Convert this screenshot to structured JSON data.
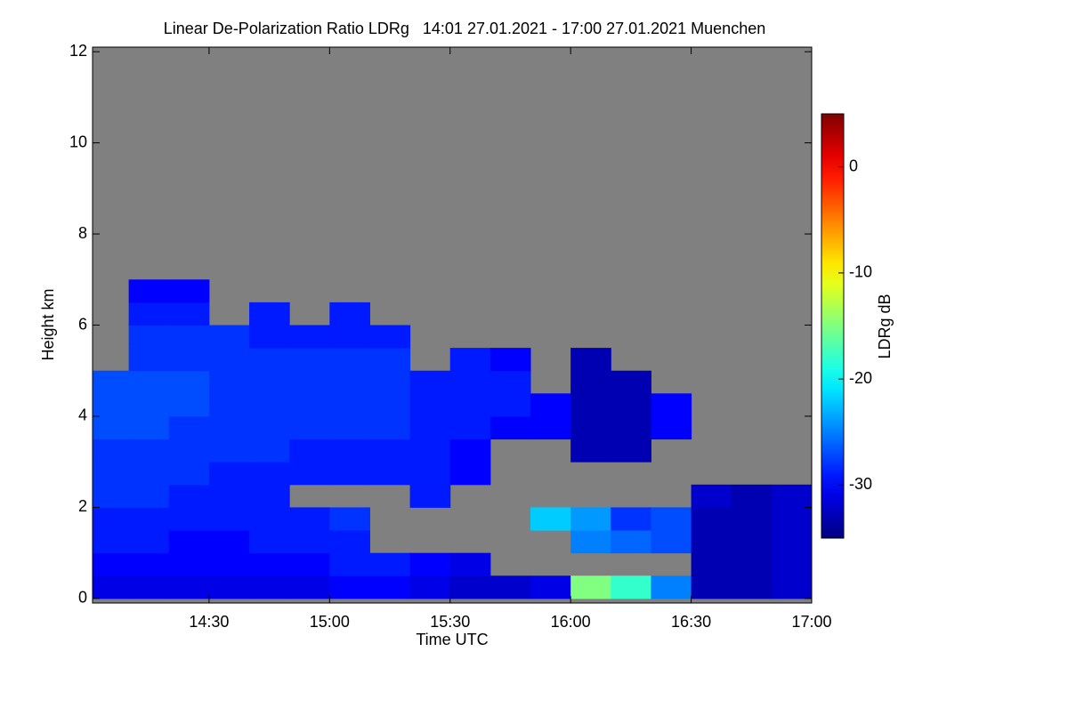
{
  "chart_data": {
    "type": "heatmap",
    "title": "Linear De-Polarization Ratio LDRg   14:01 27.01.2021 - 17:00 27.01.2021 Muenchen",
    "x_label": "Time UTC",
    "y_label": "Height km",
    "colorbar_label": "LDRg dB",
    "colormap": "jet",
    "background": "#808080",
    "xlim": [
      14.0167,
      17.0
    ],
    "xticks": [
      {
        "value": 14.5,
        "label": "14:30"
      },
      {
        "value": 15.0,
        "label": "15:00"
      },
      {
        "value": 15.5,
        "label": "15:30"
      },
      {
        "value": 16.0,
        "label": "16:00"
      },
      {
        "value": 16.5,
        "label": "16:30"
      },
      {
        "value": 17.0,
        "label": "17:00"
      }
    ],
    "ylim": [
      -0.1,
      12.1
    ],
    "yticks": [
      0,
      2,
      4,
      6,
      8,
      10,
      12
    ],
    "clim": [
      -35,
      5
    ],
    "cticks": [
      0,
      -10,
      -20,
      -30
    ],
    "x_bins": [
      14.0167,
      14.1667,
      14.3333,
      14.5,
      14.6667,
      14.8333,
      15.0,
      15.1667,
      15.3333,
      15.5,
      15.6667,
      15.8333,
      16.0,
      16.1667,
      16.3333,
      16.5,
      16.6667,
      16.8333,
      17.0
    ],
    "y_bins": [
      0,
      0.5,
      1,
      1.5,
      2,
      2.5,
      3,
      3.5,
      4,
      4.5,
      5,
      5.5,
      6,
      6.5,
      7
    ],
    "values": [
      [
        -31,
        -31,
        -31,
        -31,
        -31,
        -31,
        -30,
        -30,
        -31,
        -32,
        -32,
        -31,
        -15,
        -18,
        -25,
        -33,
        -33,
        -32
      ],
      [
        -30,
        -30,
        -30,
        -30,
        -30,
        -30,
        -29,
        -29,
        -30,
        -31,
        null,
        null,
        null,
        null,
        null,
        -33,
        -33,
        -32
      ],
      [
        -29,
        -29,
        -30,
        -30,
        -29,
        -29,
        -29,
        null,
        null,
        null,
        null,
        null,
        -25,
        -26,
        -27,
        -33,
        -33,
        -32
      ],
      [
        -29,
        -29,
        -29,
        -29,
        -29,
        -29,
        -28,
        null,
        null,
        null,
        null,
        -22,
        -24,
        -28,
        -27,
        -33,
        -33,
        -32
      ],
      [
        -28,
        -28,
        -29,
        -29,
        -29,
        null,
        null,
        null,
        -29,
        null,
        null,
        null,
        null,
        null,
        null,
        -32,
        -33,
        -32
      ],
      [
        -28,
        -28,
        -28,
        -29,
        -29,
        -29,
        -29,
        -29,
        -29,
        -30,
        null,
        null,
        null,
        null,
        null,
        null,
        null,
        null
      ],
      [
        -28,
        -28,
        -28,
        -28,
        -28,
        -29,
        -29,
        -29,
        -29,
        -30,
        null,
        null,
        -33,
        -33,
        null,
        null,
        null,
        null
      ],
      [
        -27,
        -27,
        -28,
        -28,
        -28,
        -28,
        -28,
        -28,
        -29,
        -29,
        -30,
        -30,
        -33,
        -33,
        -30,
        null,
        null,
        null
      ],
      [
        -27,
        -27,
        -27,
        -28,
        -28,
        -28,
        -28,
        -28,
        -29,
        -29,
        -29,
        -30,
        -33,
        -33,
        -30,
        null,
        null,
        null
      ],
      [
        -27,
        -27,
        -27,
        -28,
        -28,
        -28,
        -28,
        -28,
        -29,
        -29,
        -29,
        null,
        -33,
        -33,
        null,
        null,
        null,
        null
      ],
      [
        null,
        -28,
        -28,
        -28,
        -28,
        -28,
        -28,
        -28,
        null,
        -29,
        -30,
        null,
        -33,
        null,
        null,
        null,
        null,
        null
      ],
      [
        null,
        -28,
        -28,
        -28,
        -29,
        -29,
        -29,
        -29,
        null,
        null,
        null,
        null,
        null,
        null,
        null,
        null,
        null,
        null
      ],
      [
        null,
        -29,
        -29,
        null,
        -29,
        null,
        -29,
        null,
        null,
        null,
        null,
        null,
        null,
        null,
        null,
        null,
        null,
        null
      ],
      [
        null,
        -30,
        -30,
        null,
        null,
        null,
        null,
        null,
        null,
        null,
        null,
        null,
        null,
        null,
        null,
        null,
        null,
        null
      ]
    ]
  }
}
